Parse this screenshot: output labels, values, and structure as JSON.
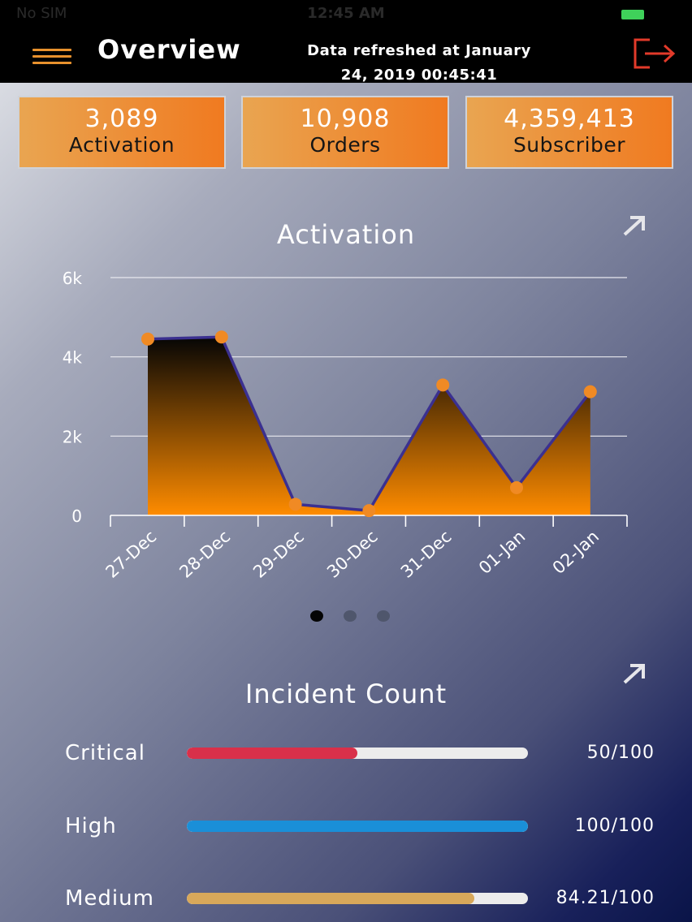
{
  "status_bar": {
    "carrier": "No SIM",
    "time": "12:45 AM"
  },
  "header": {
    "title": "Overview",
    "refresh_line1": "Data refreshed at January",
    "refresh_line2": "24, 2019 00:45:41"
  },
  "kpis": [
    {
      "value": "3,089",
      "label": "Activation"
    },
    {
      "value": "10,908",
      "label": "Orders"
    },
    {
      "value": "4,359,413",
      "label": "Subscriber"
    }
  ],
  "activation_section": {
    "title": "Activation"
  },
  "chart_data": {
    "type": "area",
    "categories": [
      "27-Dec",
      "28-Dec",
      "29-Dec",
      "30-Dec",
      "31-Dec",
      "01-Jan",
      "02-Jan"
    ],
    "values": [
      4450,
      4500,
      280,
      120,
      3290,
      700,
      3120
    ],
    "y_ticks": [
      "0",
      "2k",
      "4k",
      "6k"
    ],
    "ylim": [
      0,
      6000
    ],
    "grid": true,
    "colors": {
      "line": "#3b3090",
      "marker": "#f08a24",
      "fill_top": "#050505",
      "fill_bottom": "#ff8c00",
      "grid": "#e8e8ee"
    }
  },
  "pager": {
    "active_index": 0,
    "count": 3
  },
  "incident_section": {
    "title": "Incident Count"
  },
  "incidents": [
    {
      "label": "Critical",
      "value_text": "50/100",
      "fraction": 0.5,
      "color": "#d9304a"
    },
    {
      "label": "High",
      "value_text": "100/100",
      "fraction": 1.0,
      "color": "#1a8fd8"
    },
    {
      "label": "Medium",
      "value_text": "84.21/100",
      "fraction": 0.8421,
      "color": "#d8a85a"
    }
  ],
  "icons": {
    "menu": "hamburger-icon",
    "logout": "logout-icon",
    "expand": "expand-arrow-icon"
  },
  "colors": {
    "accent": "#f07a20",
    "header_bg": "#000000",
    "logout": "#e23a2a"
  }
}
